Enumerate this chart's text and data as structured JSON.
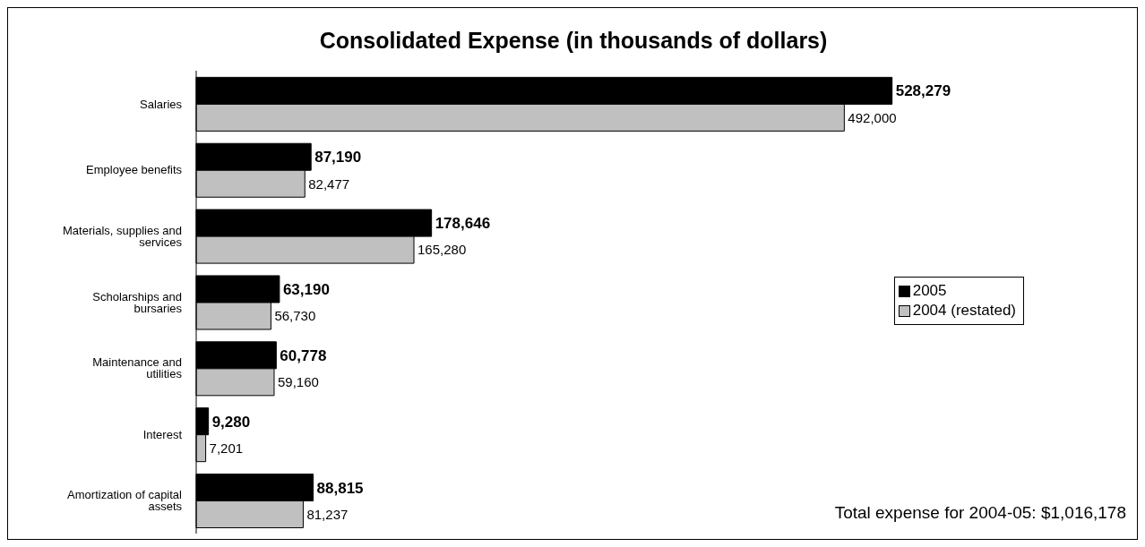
{
  "chart_data": {
    "type": "bar",
    "orientation": "horizontal",
    "title": "Consolidated Expense (in thousands of dollars)",
    "categories": [
      "Salaries",
      "Employee benefits",
      "Materials, supplies and services",
      "Scholarships and bursaries",
      "Maintenance and utilities",
      "Interest",
      "Amortization of capital assets"
    ],
    "series": [
      {
        "name": "2005",
        "color": "#000000",
        "values": [
          528279,
          87190,
          178646,
          63190,
          60778,
          9280,
          88815
        ],
        "value_labels": [
          "528,279",
          "87,190",
          "178,646",
          "63,190",
          "60,778",
          "9,280",
          "88,815"
        ]
      },
      {
        "name": "2004 (restated)",
        "color": "#c0c0c0",
        "values": [
          492000,
          82477,
          165280,
          56730,
          59160,
          7201,
          81237
        ],
        "value_labels": [
          "492,000",
          "82,477",
          "165,280",
          "56,730",
          "59,160",
          "7,201",
          "81,237"
        ]
      }
    ],
    "legend": "right",
    "grid": false,
    "annotations": [
      "Total expense for 2004-05: $1,016,178"
    ]
  }
}
